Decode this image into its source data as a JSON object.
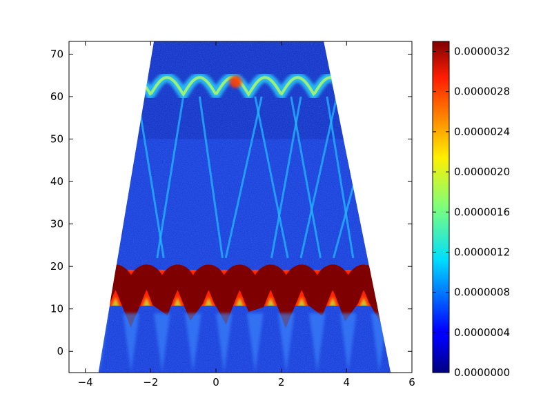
{
  "chart_data": {
    "type": "heatmap",
    "title": "",
    "xlabel": "",
    "ylabel": "",
    "xlim": [
      -4.5,
      6
    ],
    "ylim": [
      -5,
      73
    ],
    "x_ticks": [
      {
        "value": -4,
        "label": "−4"
      },
      {
        "value": -2,
        "label": "−2"
      },
      {
        "value": 0,
        "label": "0"
      },
      {
        "value": 2,
        "label": "2"
      },
      {
        "value": 4,
        "label": "4"
      },
      {
        "value": 6,
        "label": "6"
      }
    ],
    "y_ticks": [
      {
        "value": 0,
        "label": "0"
      },
      {
        "value": 10,
        "label": "10"
      },
      {
        "value": 20,
        "label": "20"
      },
      {
        "value": 30,
        "label": "30"
      },
      {
        "value": 40,
        "label": "40"
      },
      {
        "value": 50,
        "label": "50"
      },
      {
        "value": 60,
        "label": "60"
      },
      {
        "value": 70,
        "label": "70"
      }
    ],
    "data_region": {
      "shape": "trapezoid",
      "bottom_x": [
        -3.6,
        5.35
      ],
      "top_x": [
        -1.9,
        3.3
      ]
    },
    "features": [
      {
        "name": "low band",
        "y_center": 13,
        "y_range": [
          5,
          21
        ],
        "level": "high (saturated)"
      },
      {
        "name": "upper band",
        "y_center": 61,
        "level": "medium"
      },
      {
        "name": "crossing streaks",
        "y_range": [
          20,
          60
        ],
        "level": "low-medium"
      }
    ],
    "colorbar": {
      "colormap": "jet",
      "vmin": 0.0,
      "vmax": 3.3e-06,
      "ticks": [
        {
          "value": 0.0,
          "label": "0.0000000"
        },
        {
          "value": 4e-07,
          "label": "0.0000004"
        },
        {
          "value": 8e-07,
          "label": "0.0000008"
        },
        {
          "value": 1.2e-06,
          "label": "0.0000012"
        },
        {
          "value": 1.6e-06,
          "label": "0.0000016"
        },
        {
          "value": 2e-06,
          "label": "0.0000020"
        },
        {
          "value": 2.4e-06,
          "label": "0.0000024"
        },
        {
          "value": 2.8e-06,
          "label": "0.0000028"
        },
        {
          "value": 3.2e-06,
          "label": "0.0000032"
        }
      ]
    },
    "grid": false,
    "legend": "none"
  }
}
